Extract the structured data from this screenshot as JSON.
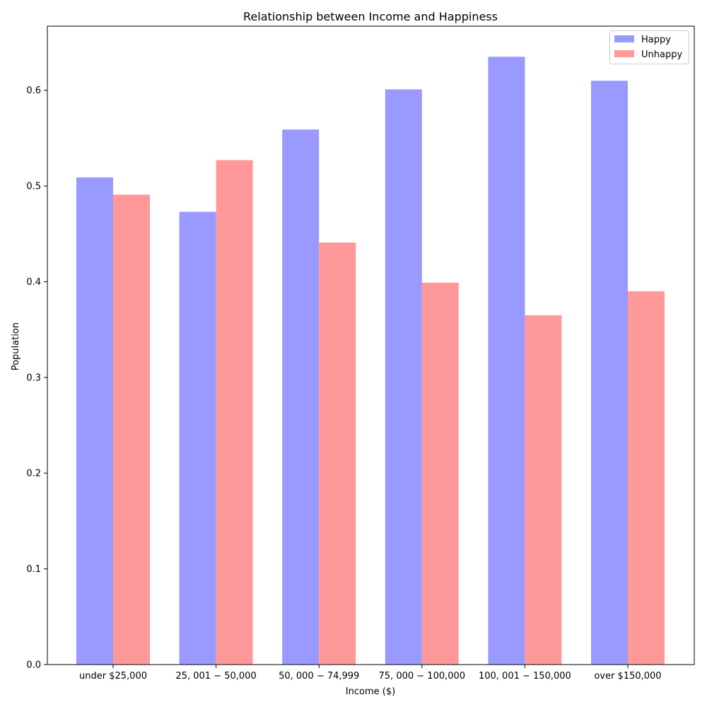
{
  "chart_data": {
    "type": "bar",
    "title": "Relationship between Income and Happiness",
    "xlabel": "Income ($)",
    "ylabel": "Population",
    "categories": [
      "under $25,000",
      "$25,001 - $50,000",
      "$50,000 - $74,999",
      "$75,000 - $100,000",
      "$100,001 - $150,000",
      "over $150,000"
    ],
    "category_display": [
      "under $25,000",
      "25, 001 − 50,000",
      "50, 000 − 74,999",
      "75, 000 − 100,000",
      "100, 001 − 150,000",
      "over $150,000"
    ],
    "series": [
      {
        "name": "Happy",
        "color": "#9999ff",
        "values": [
          0.509,
          0.473,
          0.559,
          0.601,
          0.635,
          0.61
        ]
      },
      {
        "name": "Unhappy",
        "color": "#ff9999",
        "values": [
          0.491,
          0.527,
          0.441,
          0.399,
          0.365,
          0.39
        ]
      }
    ],
    "ylim": [
      0,
      0.667
    ],
    "yticks": [
      0.0,
      0.1,
      0.2,
      0.3,
      0.4,
      0.5,
      0.6
    ],
    "ytick_labels": [
      "0.0",
      "0.1",
      "0.2",
      "0.3",
      "0.4",
      "0.5",
      "0.6"
    ],
    "grid": false,
    "legend_position": "top-right"
  }
}
